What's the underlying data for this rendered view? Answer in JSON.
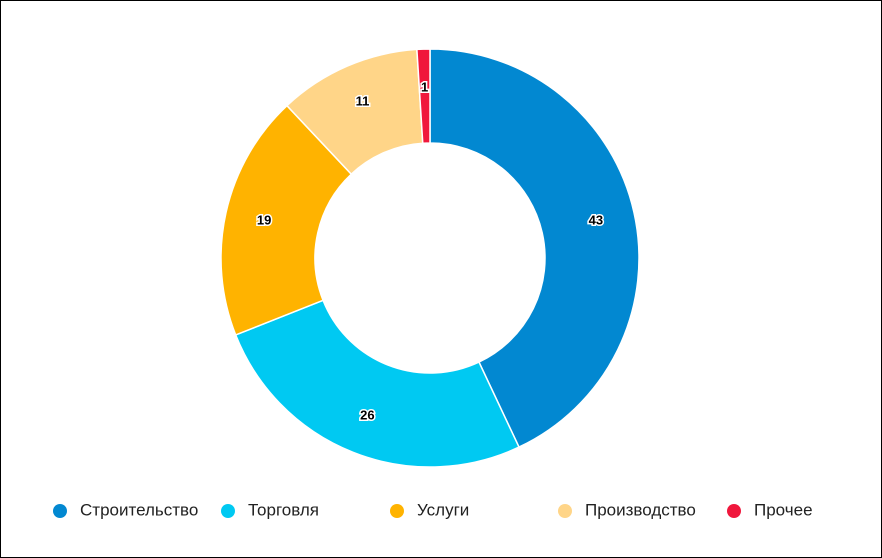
{
  "chart_data": {
    "type": "pie",
    "categories": [
      "Строительство",
      "Торговля",
      "Услуги",
      "Производство",
      "Прочее"
    ],
    "values": [
      43,
      26,
      19,
      11,
      1
    ],
    "colors": [
      "#0288d1",
      "#00c9f2",
      "#ffb300",
      "#ffd588",
      "#f0173c"
    ],
    "donut": true,
    "legend": "bottom"
  }
}
